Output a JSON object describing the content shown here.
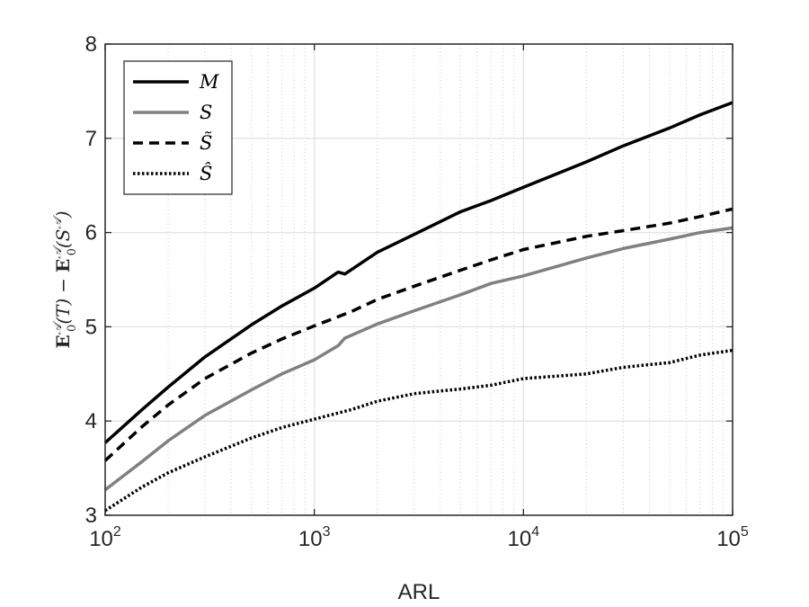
{
  "chart_data": {
    "type": "line",
    "xlabel": "ARL",
    "ylabel": "E_0^A(T) − E_0^A(S^A)",
    "x_scale": "log",
    "xlim": [
      100,
      100000
    ],
    "ylim": [
      3,
      8
    ],
    "x_ticks": [
      {
        "base": "10",
        "exp": "2",
        "value": 100
      },
      {
        "base": "10",
        "exp": "3",
        "value": 1000
      },
      {
        "base": "10",
        "exp": "4",
        "value": 10000
      },
      {
        "base": "10",
        "exp": "5",
        "value": 100000
      }
    ],
    "y_ticks": [
      "3",
      "4",
      "5",
      "6",
      "7",
      "8"
    ],
    "grid": true,
    "minor_grid": true,
    "legend_position": "top-left",
    "series": [
      {
        "name": "M",
        "color": "#000000",
        "style": "solid",
        "x": [
          100,
          150,
          200,
          300,
          500,
          700,
          1000,
          1300,
          1400,
          2000,
          3000,
          5000,
          7000,
          10000,
          20000,
          30000,
          50000,
          70000,
          100000
        ],
        "y": [
          3.77,
          4.12,
          4.36,
          4.68,
          5.02,
          5.22,
          5.41,
          5.58,
          5.56,
          5.79,
          5.98,
          6.22,
          6.34,
          6.48,
          6.75,
          6.92,
          7.11,
          7.25,
          7.38
        ]
      },
      {
        "name": "S",
        "color": "#808080",
        "style": "solid",
        "x": [
          100,
          150,
          200,
          300,
          500,
          700,
          1000,
          1300,
          1400,
          2000,
          3000,
          5000,
          7000,
          10000,
          20000,
          30000,
          50000,
          70000,
          100000
        ],
        "y": [
          3.27,
          3.57,
          3.79,
          4.06,
          4.33,
          4.5,
          4.65,
          4.8,
          4.88,
          5.03,
          5.17,
          5.34,
          5.46,
          5.54,
          5.73,
          5.83,
          5.93,
          6.0,
          6.05
        ]
      },
      {
        "name": "S̃",
        "color": "#000000",
        "style": "dashed",
        "x": [
          100,
          150,
          200,
          300,
          500,
          700,
          1000,
          1500,
          2000,
          3000,
          5000,
          7000,
          10000,
          20000,
          30000,
          50000,
          70000,
          100000
        ],
        "y": [
          3.58,
          3.94,
          4.17,
          4.45,
          4.72,
          4.87,
          5.01,
          5.16,
          5.29,
          5.43,
          5.6,
          5.71,
          5.82,
          5.96,
          6.02,
          6.1,
          6.17,
          6.25
        ]
      },
      {
        "name": "Ŝ",
        "color": "#000000",
        "style": "dotted",
        "x": [
          100,
          150,
          200,
          300,
          500,
          700,
          1000,
          1500,
          2000,
          3000,
          5000,
          7000,
          10000,
          20000,
          30000,
          50000,
          70000,
          100000
        ],
        "y": [
          3.05,
          3.3,
          3.45,
          3.62,
          3.82,
          3.93,
          4.02,
          4.12,
          4.21,
          4.29,
          4.34,
          4.38,
          4.45,
          4.5,
          4.57,
          4.62,
          4.7,
          4.75
        ]
      }
    ]
  }
}
